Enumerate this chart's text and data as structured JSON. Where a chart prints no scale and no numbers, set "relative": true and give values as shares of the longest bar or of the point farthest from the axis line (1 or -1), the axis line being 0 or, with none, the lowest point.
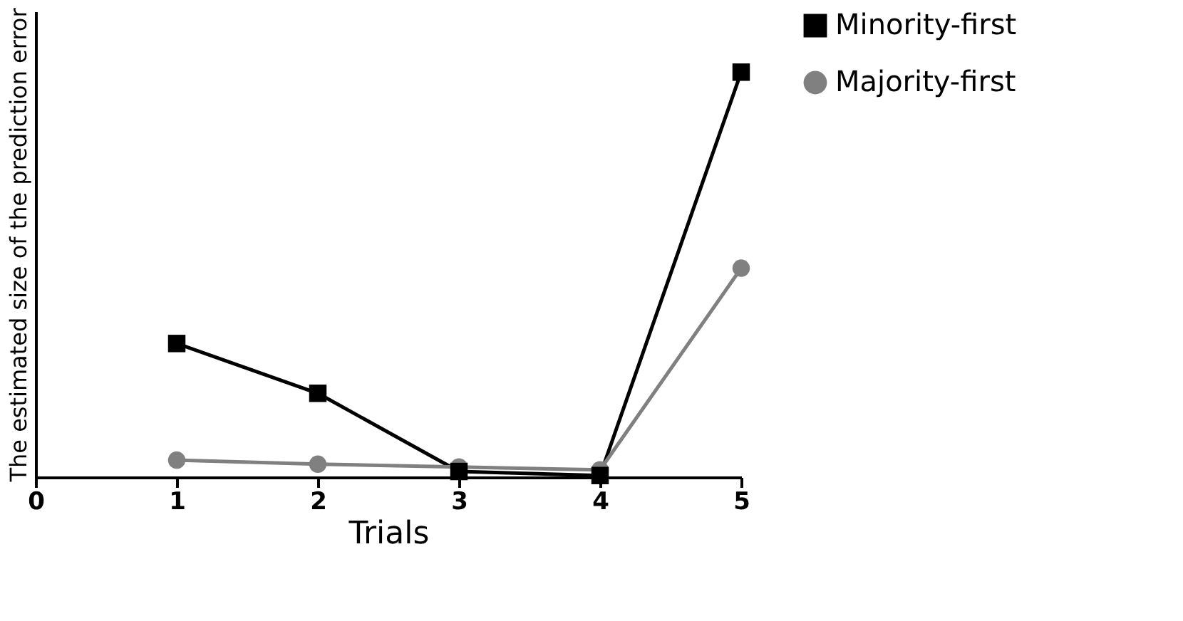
{
  "chart_data": {
    "type": "line",
    "xlabel": "Trials",
    "ylabel": "The estimated size of the prediction error",
    "x": [
      1,
      2,
      3,
      4,
      5
    ],
    "xlim": [
      0,
      5
    ],
    "xticks": [
      0,
      1,
      2,
      3,
      4,
      5
    ],
    "relative": true,
    "legend": "top right",
    "grid": false,
    "series": [
      {
        "name": "Minority-first",
        "color": "#000000",
        "marker": "square",
        "values": [
          0.33,
          0.207,
          0.014,
          0.004,
          1
        ]
      },
      {
        "name": "Majority-first",
        "color": "#808080",
        "marker": "circle",
        "values": [
          0.042,
          0.032,
          0.025,
          0.018,
          0.516
        ]
      }
    ]
  }
}
